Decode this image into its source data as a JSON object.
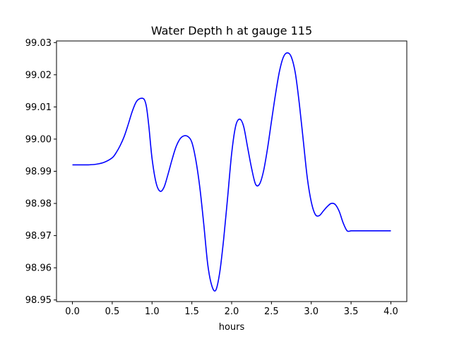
{
  "chart_data": {
    "type": "line",
    "title": "Water Depth h at gauge 115",
    "xlabel": "hours",
    "ylabel": "",
    "xlim": [
      -0.2,
      4.2
    ],
    "ylim": [
      98.9495,
      99.0305
    ],
    "grid": false,
    "x_ticks": [
      0.0,
      0.5,
      1.0,
      1.5,
      2.0,
      2.5,
      3.0,
      3.5,
      4.0
    ],
    "x_tick_labels": [
      "0.0",
      "0.5",
      "1.0",
      "1.5",
      "2.0",
      "2.5",
      "3.0",
      "3.5",
      "4.0"
    ],
    "y_ticks": [
      98.95,
      98.96,
      98.97,
      98.98,
      98.99,
      99.0,
      99.01,
      99.02,
      99.03
    ],
    "y_tick_labels": [
      "98.95",
      "98.96",
      "98.97",
      "98.98",
      "98.99",
      "99.00",
      "99.01",
      "99.02",
      "99.03"
    ],
    "series": [
      {
        "color": "#0000ff",
        "x": [
          0.0,
          0.1,
          0.2,
          0.3,
          0.4,
          0.5,
          0.55,
          0.6,
          0.65,
          0.7,
          0.75,
          0.8,
          0.85,
          0.9,
          0.93,
          0.96,
          1.0,
          1.05,
          1.1,
          1.15,
          1.2,
          1.25,
          1.3,
          1.35,
          1.4,
          1.45,
          1.5,
          1.55,
          1.6,
          1.65,
          1.7,
          1.75,
          1.8,
          1.85,
          1.9,
          1.95,
          2.0,
          2.05,
          2.1,
          2.15,
          2.2,
          2.25,
          2.3,
          2.35,
          2.4,
          2.45,
          2.5,
          2.55,
          2.6,
          2.65,
          2.7,
          2.75,
          2.8,
          2.85,
          2.9,
          2.95,
          3.0,
          3.05,
          3.1,
          3.15,
          3.2,
          3.25,
          3.3,
          3.35,
          3.4,
          3.45,
          3.5,
          3.55,
          3.6,
          3.65,
          3.7,
          3.75,
          3.8,
          3.85,
          3.9,
          3.95,
          4.0
        ],
        "y": [
          98.992,
          98.992,
          98.992,
          98.9922,
          98.9928,
          98.9942,
          98.9958,
          98.998,
          99.0008,
          99.0045,
          99.0085,
          99.0115,
          99.0126,
          99.0124,
          99.01,
          99.004,
          98.994,
          98.9865,
          98.9838,
          98.985,
          98.989,
          98.9935,
          98.9975,
          99.0,
          99.001,
          99.0008,
          98.999,
          98.9935,
          98.985,
          98.9735,
          98.961,
          98.9545,
          98.953,
          98.9585,
          98.969,
          98.982,
          98.9955,
          99.004,
          99.0062,
          99.004,
          98.9975,
          98.991,
          98.986,
          98.986,
          98.99,
          98.997,
          99.0055,
          99.0138,
          99.021,
          99.0255,
          99.0268,
          99.0255,
          99.0205,
          99.011,
          98.9995,
          98.988,
          98.9805,
          98.9766,
          98.9762,
          98.9776,
          98.979,
          98.98,
          98.9797,
          98.9776,
          98.974,
          98.9715,
          98.9715,
          98.9715,
          98.9715,
          98.9715,
          98.9715,
          98.9715,
          98.9715,
          98.9715,
          98.9715,
          98.9715,
          98.9715
        ]
      }
    ]
  }
}
